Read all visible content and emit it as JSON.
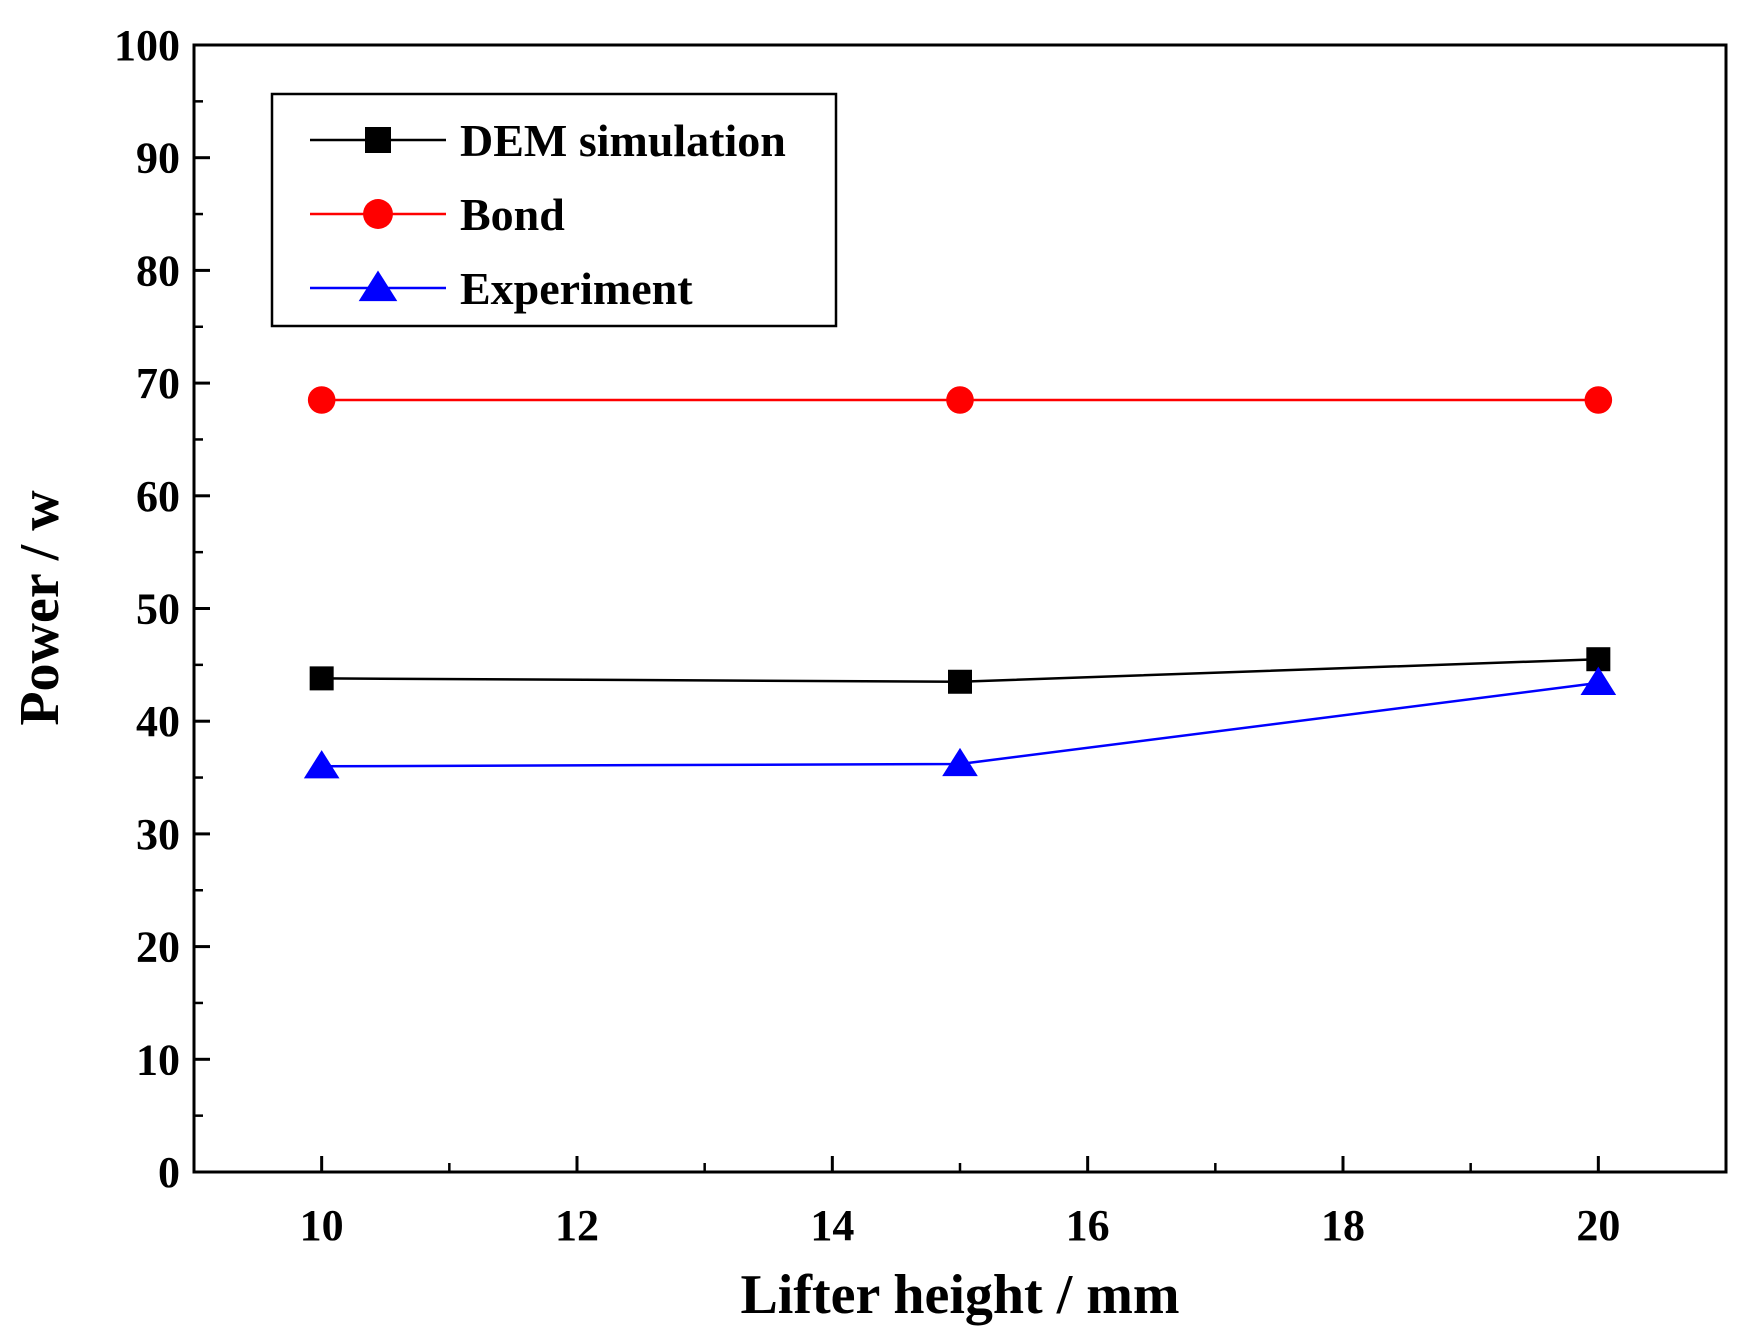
{
  "chart_data": {
    "type": "line",
    "title": "",
    "xlabel": "Lifter height / mm",
    "ylabel": "Power / w",
    "xlim": [
      9,
      21
    ],
    "ylim": [
      0,
      100
    ],
    "xticks": [
      10,
      12,
      14,
      16,
      18,
      20
    ],
    "xticks_minor": [
      11,
      13,
      15,
      17,
      19
    ],
    "yticks": [
      0,
      10,
      20,
      30,
      40,
      50,
      60,
      70,
      80,
      90,
      100
    ],
    "yticks_minor": [
      5,
      15,
      25,
      35,
      45,
      55,
      65,
      75,
      85,
      95
    ],
    "legend_position": "top-left",
    "grid": false,
    "x": [
      10,
      15,
      20
    ],
    "series": [
      {
        "name": "DEM simulation",
        "values": [
          43.8,
          43.5,
          45.5
        ],
        "color": "#000000",
        "marker": "square"
      },
      {
        "name": "Bond",
        "values": [
          68.5,
          68.5,
          68.5
        ],
        "color": "#ff0000",
        "marker": "circle"
      },
      {
        "name": "Experiment",
        "values": [
          36.0,
          36.2,
          43.4
        ],
        "color": "#0000ff",
        "marker": "triangle"
      }
    ]
  }
}
